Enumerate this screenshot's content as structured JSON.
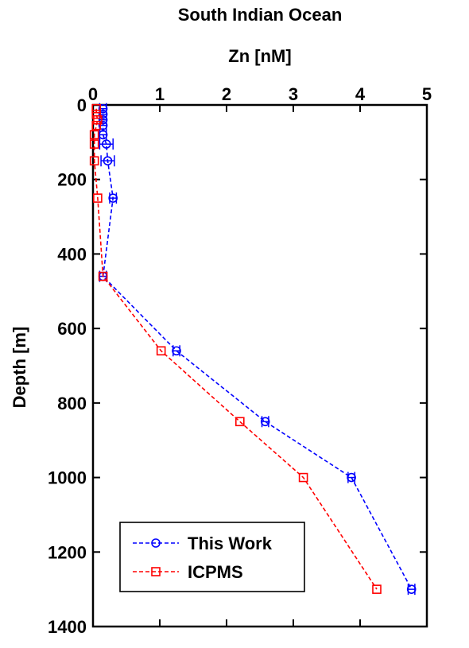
{
  "chart_data": {
    "type": "line",
    "title": "South Indian Ocean",
    "xlabel": "Zn [nM]",
    "ylabel": "Depth [m]",
    "x_axis_position": "top",
    "y_axis_reversed": true,
    "xlim": [
      0,
      5
    ],
    "ylim": [
      0,
      1400
    ],
    "xticks": [
      0,
      1,
      2,
      3,
      4,
      5
    ],
    "yticks": [
      0,
      200,
      400,
      600,
      800,
      1000,
      1200,
      1400
    ],
    "xtick_labels": [
      "0",
      "1",
      "2",
      "3",
      "4",
      "5"
    ],
    "ytick_labels": [
      "0",
      "200",
      "400",
      "600",
      "800",
      "1000",
      "1200",
      "1400"
    ],
    "grid": false,
    "legend_position": "bottom-left",
    "series": [
      {
        "name": "This Work",
        "color": "#0000ff",
        "marker": "circle",
        "line_style": "dashed",
        "x": [
          0.15,
          0.15,
          0.15,
          0.15,
          0.15,
          0.2,
          0.22,
          0.3,
          0.15,
          1.25,
          2.58,
          3.87,
          4.77
        ],
        "y": [
          10,
          25,
          40,
          55,
          80,
          105,
          150,
          250,
          460,
          660,
          850,
          1000,
          1300
        ],
        "xerr": [
          0.05,
          0.05,
          0.05,
          0.05,
          0.05,
          0.1,
          0.1,
          0.05,
          0.05,
          0.05,
          0.05,
          0.05,
          0.05
        ]
      },
      {
        "name": "ICPMS",
        "color": "#ff0000",
        "marker": "square",
        "line_style": "dashed",
        "x": [
          0.05,
          0.05,
          0.07,
          0.05,
          0.02,
          0.02,
          0.02,
          0.07,
          0.15,
          1.02,
          2.2,
          3.15,
          4.25
        ],
        "y": [
          10,
          25,
          40,
          55,
          80,
          105,
          150,
          250,
          460,
          660,
          850,
          1000,
          1300
        ]
      }
    ]
  }
}
